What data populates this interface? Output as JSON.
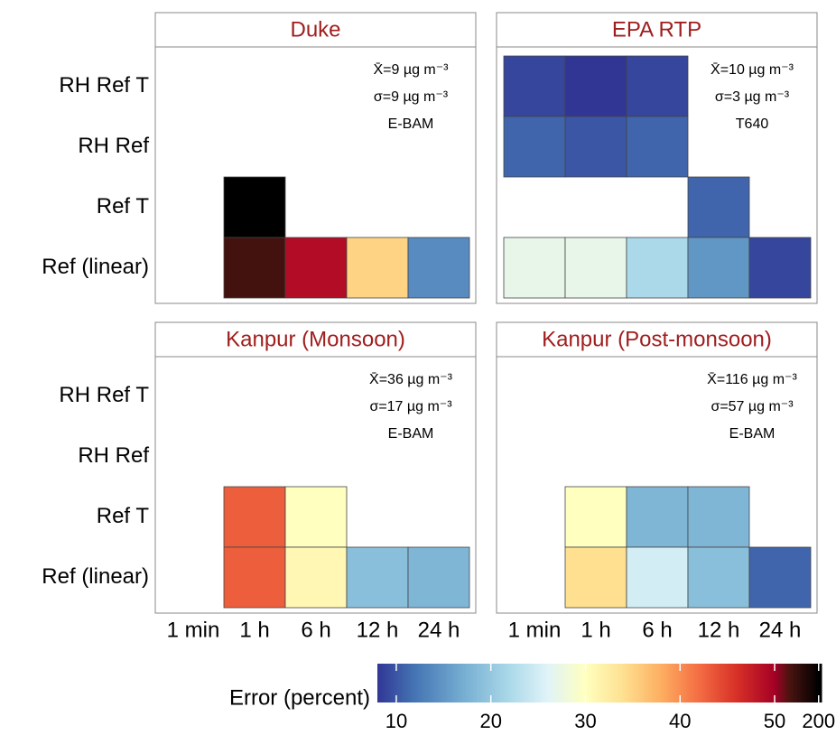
{
  "chart_data": {
    "type": "heatmap",
    "x_categories": [
      "1 min",
      "1 h",
      "6 h",
      "12 h",
      "24 h"
    ],
    "y_categories": [
      "RH Ref T",
      "RH Ref",
      "Ref T",
      "Ref (linear)"
    ],
    "panels": [
      {
        "title": "Duke",
        "annotations": [
          "X̄=9 µg m⁻³",
          "σ=9 µg m⁻³",
          "E-BAM"
        ],
        "values": [
          [
            null,
            null,
            null,
            null,
            null
          ],
          [
            null,
            null,
            null,
            null,
            null
          ],
          [
            null,
            200,
            null,
            null,
            null
          ],
          [
            null,
            110,
            49,
            35,
            14
          ]
        ]
      },
      {
        "title": "EPA RTP",
        "annotations": [
          "X̄=10 µg m⁻³",
          "σ=3 µg m⁻³",
          "T640"
        ],
        "values": [
          [
            9,
            8,
            9,
            null,
            null
          ],
          [
            11,
            10,
            11,
            null,
            null
          ],
          [
            null,
            null,
            null,
            11,
            null
          ],
          [
            27,
            27,
            22,
            15,
            9
          ]
        ]
      },
      {
        "title": "Kanpur (Monsoon)",
        "annotations": [
          "X̄=36 µg m⁻³",
          "σ=17 µg m⁻³",
          "E-BAM"
        ],
        "values": [
          [
            null,
            null,
            null,
            null,
            null
          ],
          [
            null,
            null,
            null,
            null,
            null
          ],
          [
            null,
            43,
            30,
            null,
            null
          ],
          [
            null,
            43,
            31,
            19,
            18
          ]
        ]
      },
      {
        "title": "Kanpur (Post-monsoon)",
        "annotations": [
          "X̄=116 µg m⁻³",
          "σ=57 µg m⁻³",
          "E-BAM"
        ],
        "values": [
          [
            null,
            null,
            null,
            null,
            null
          ],
          [
            null,
            null,
            null,
            null,
            null
          ],
          [
            null,
            30,
            18,
            18,
            null
          ],
          [
            null,
            34,
            25,
            19,
            11
          ]
        ]
      }
    ],
    "colorbar": {
      "label": "Error (percent)",
      "lim": [
        8,
        210
      ],
      "break": 50,
      "ticks": [
        10,
        20,
        30,
        40,
        50,
        200
      ],
      "stops": [
        {
          "value": 8,
          "color": "#313695"
        },
        {
          "value": 12,
          "color": "#4575b4"
        },
        {
          "value": 17,
          "color": "#74add1"
        },
        {
          "value": 22,
          "color": "#abd9e9"
        },
        {
          "value": 26,
          "color": "#e0f3f8"
        },
        {
          "value": 30,
          "color": "#ffffbf"
        },
        {
          "value": 34,
          "color": "#fee090"
        },
        {
          "value": 38,
          "color": "#fdae61"
        },
        {
          "value": 42,
          "color": "#f46d43"
        },
        {
          "value": 46,
          "color": "#d73027"
        },
        {
          "value": 50,
          "color": "#a50026"
        },
        {
          "value": 100,
          "color": "#4a1410"
        },
        {
          "value": 200,
          "color": "#000000"
        }
      ]
    }
  }
}
